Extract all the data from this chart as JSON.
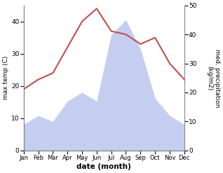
{
  "months": [
    "Jan",
    "Feb",
    "Mar",
    "Apr",
    "May",
    "Jun",
    "Jul",
    "Aug",
    "Sep",
    "Oct",
    "Nov",
    "Dec"
  ],
  "temperature": [
    19,
    22,
    24,
    32,
    40,
    44,
    37,
    36,
    33,
    35,
    27,
    22
  ],
  "precipitation": [
    9,
    12,
    10,
    17,
    20,
    17,
    40,
    45,
    35,
    18,
    12,
    9
  ],
  "temp_color": "#c0504d",
  "precip_fill_color": "#c5cef0",
  "left_ylim": [
    0,
    45
  ],
  "right_ylim": [
    0,
    50
  ],
  "left_yticks": [
    0,
    10,
    20,
    30,
    40
  ],
  "right_yticks": [
    0,
    10,
    20,
    30,
    40,
    50
  ],
  "xlabel": "date (month)",
  "ylabel_left": "max temp (C)",
  "ylabel_right": "med. precipitation\n(kg/m2)",
  "bg_color": "#ffffff",
  "spine_color": "#888888"
}
